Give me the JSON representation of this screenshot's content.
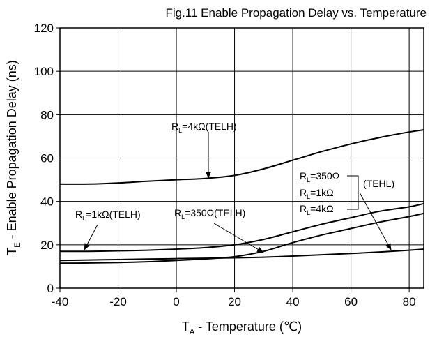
{
  "chart_data": {
    "type": "line",
    "title": "Fig.11  Enable Propagation Delay vs. Temperature",
    "xlabel": {
      "main": "T",
      "sub": "A",
      "rest": " - Temperature (℃)"
    },
    "ylabel": {
      "main": "T",
      "sub": "E",
      "rest": " - Enable Propagation Delay (ns)"
    },
    "xlim": [
      -40,
      85
    ],
    "ylim": [
      0,
      120
    ],
    "xticks": [
      -40,
      -20,
      0,
      20,
      40,
      60,
      80
    ],
    "yticks": [
      0,
      20,
      40,
      60,
      80,
      100,
      120
    ],
    "grid": true,
    "series": [
      {
        "id": "telh-4k",
        "x": [
          -40,
          -30,
          -20,
          -10,
          0,
          10,
          20,
          30,
          40,
          50,
          60,
          70,
          80,
          85
        ],
        "y": [
          48,
          48,
          48.5,
          49.3,
          50,
          50.6,
          52,
          55,
          59,
          63,
          66.5,
          69.5,
          72,
          73
        ]
      },
      {
        "id": "telh-1k",
        "x": [
          -40,
          -30,
          -20,
          -10,
          0,
          10,
          20,
          30,
          40,
          50,
          60,
          70,
          80,
          85
        ],
        "y": [
          17,
          17,
          17.2,
          17.5,
          18,
          18.7,
          20,
          22.5,
          26,
          29.5,
          32.5,
          35.5,
          37.5,
          39
        ]
      },
      {
        "id": "telh-350",
        "x": [
          -40,
          -30,
          -20,
          -10,
          0,
          10,
          20,
          30,
          40,
          50,
          60,
          70,
          80,
          85
        ],
        "y": [
          11.5,
          11.6,
          11.8,
          12.2,
          12.8,
          13.5,
          14.5,
          17,
          21,
          24.5,
          27.5,
          30.5,
          33,
          34.5
        ]
      },
      {
        "id": "tehl",
        "x": [
          -40,
          -30,
          -20,
          -10,
          0,
          10,
          20,
          30,
          40,
          50,
          60,
          70,
          80,
          85
        ],
        "y": [
          12.8,
          13,
          13.2,
          13.4,
          13.6,
          13.8,
          14,
          14.3,
          14.8,
          15.4,
          16,
          16.7,
          17.5,
          18
        ]
      }
    ],
    "annotations": {
      "a4k": {
        "main": "R",
        "sub": "L",
        "rest": "=4kΩ(TELH)"
      },
      "a1k": {
        "main": "R",
        "sub": "L",
        "rest": "=1kΩ(TELH)"
      },
      "a350": {
        "main": "R",
        "sub": "L",
        "rest": "=350Ω(TELH)"
      },
      "tehl_1": {
        "main": "R",
        "sub": "L",
        "rest": "=350Ω"
      },
      "tehl_2": {
        "main": "R",
        "sub": "L",
        "rest": "=1kΩ"
      },
      "tehl_3": {
        "main": "R",
        "sub": "L",
        "rest": "=4kΩ"
      },
      "tehl_group": "(TEHL)"
    }
  }
}
